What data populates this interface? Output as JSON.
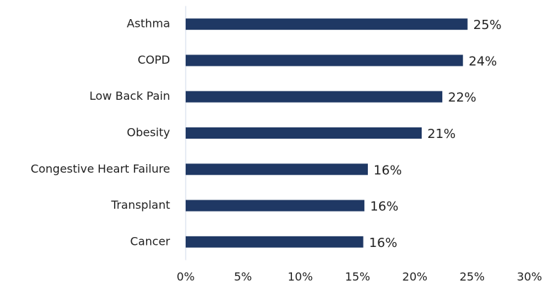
{
  "chart_data": {
    "type": "bar",
    "orientation": "horizontal",
    "categories": [
      "Asthma",
      "COPD",
      "Low Back Pain",
      "Obesity",
      "Congestive Heart Failure",
      "Transplant",
      "Cancer"
    ],
    "values": [
      24.6,
      24.2,
      22.4,
      20.6,
      15.9,
      15.6,
      15.5
    ],
    "value_labels": [
      "25%",
      "24%",
      "22%",
      "21%",
      "16%",
      "16%",
      "16%"
    ],
    "color": "#1f3864",
    "xlim": [
      0,
      30
    ],
    "xticks": [
      {
        "value": 0,
        "label": "0%"
      },
      {
        "value": 5,
        "label": "5%"
      },
      {
        "value": 10,
        "label": "10%"
      },
      {
        "value": 15,
        "label": "15%"
      },
      {
        "value": 20,
        "label": "20%"
      },
      {
        "value": 25,
        "label": "25%"
      },
      {
        "value": 30,
        "label": "30%"
      }
    ],
    "grid": false
  }
}
